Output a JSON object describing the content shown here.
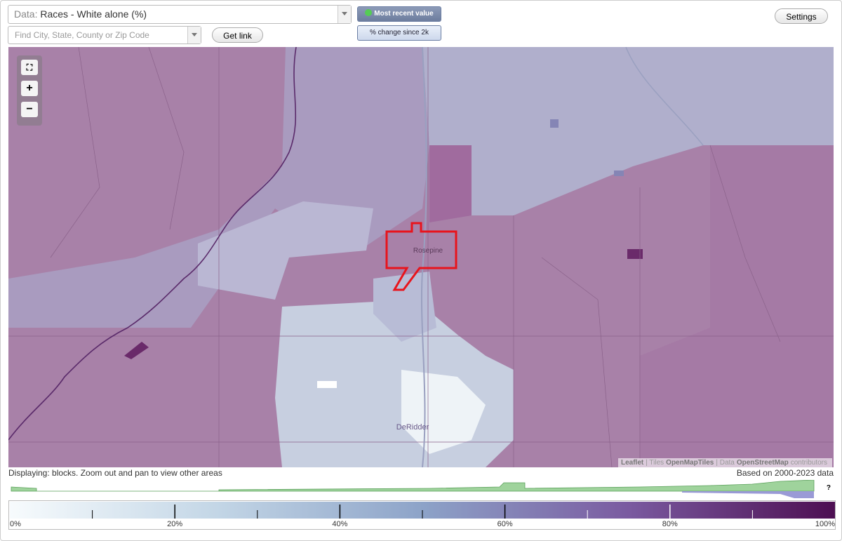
{
  "header": {
    "data_label": "Data:",
    "data_value": "Races - White alone (%)",
    "search_placeholder": "Find City, State, County or Zip Code",
    "get_link": "Get link",
    "most_recent": "Most recent value",
    "percent_change": "% change since 2k",
    "settings": "Settings"
  },
  "map": {
    "places": [
      "Rosepine",
      "DeRidder"
    ],
    "attribution": [
      "Leaflet",
      "| Tiles",
      "OpenMapTiles",
      "| Data",
      "OpenStreetMap",
      "contributors"
    ]
  },
  "status": {
    "displaying": "Displaying: blocks. Zoom out and pan to view other areas",
    "based_on": "Based on 2000-2023 data",
    "help": "?"
  },
  "legend": {
    "range": [
      0,
      100
    ],
    "ticks": [
      {
        "value": 0,
        "label": "0%"
      },
      {
        "value": 20,
        "label": "20%"
      },
      {
        "value": 40,
        "label": "40%"
      },
      {
        "value": 60,
        "label": "60%"
      },
      {
        "value": 80,
        "label": "80%"
      },
      {
        "value": 100,
        "label": "100%"
      }
    ]
  }
}
